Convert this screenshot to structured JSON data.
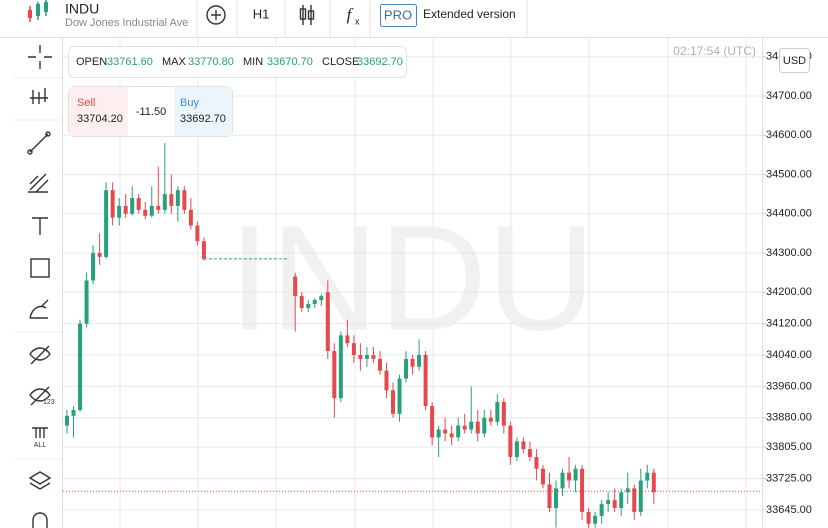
{
  "header": {
    "symbol": "INDU",
    "name": "Dow Jones Industrial Ave",
    "timeframe": "H1",
    "pro": "PRO",
    "extended": "Extended version"
  },
  "info": {
    "open_label": "OPEN",
    "open": "33761.60",
    "max_label": "MAX",
    "max": "33770.80",
    "min_label": "MIN",
    "min": "33670.70",
    "close_label": "CLOSE",
    "close": "33692.70",
    "time": "02:17:54 (UTC)",
    "currency": "USD"
  },
  "trade": {
    "sell_label": "Sell",
    "sell": "33704.20",
    "spread": "-11.50",
    "buy_label": "Buy",
    "buy": "33692.70"
  },
  "toolbar": {
    "badge_123": "123",
    "badge_all": "ALL"
  },
  "chart_data": {
    "type": "candlestick",
    "up_color": "#26a17b",
    "down_color": "#e5484d",
    "current_price": 33692.7,
    "grid": true,
    "ylim": [
      33599,
      34848
    ],
    "yticks": [
      {
        "value": 34800,
        "label": "34800.00"
      },
      {
        "value": 34700,
        "label": "34700.00"
      },
      {
        "value": 34600,
        "label": "34600.00"
      },
      {
        "value": 34500,
        "label": "34500.00"
      },
      {
        "value": 34400,
        "label": "34400.00"
      },
      {
        "value": 34300,
        "label": "34300.00"
      },
      {
        "value": 34200,
        "label": "34200.00"
      },
      {
        "value": 34120,
        "label": "34120.00"
      },
      {
        "value": 34040,
        "label": "34040.00"
      },
      {
        "value": 33960,
        "label": "33960.00"
      },
      {
        "value": 33880,
        "label": "33880.00"
      },
      {
        "value": 33805,
        "label": "33805.00"
      },
      {
        "value": 33725,
        "label": "33725.00"
      },
      {
        "value": 33645,
        "label": "33645.00"
      }
    ],
    "open": [
      33860,
      33885,
      33900,
      34120,
      34230,
      34300,
      34290,
      34460,
      34390,
      34420,
      34400,
      34440,
      34410,
      34395,
      34420,
      34410,
      34450,
      34420,
      34460,
      34410,
      34370,
      34330,
      null,
      null,
      null,
      null,
      null,
      null,
      null,
      null,
      null,
      null,
      null,
      null,
      null,
      34240,
      34190,
      34160,
      34170,
      34180,
      34200,
      34050,
      33930,
      34090,
      34070,
      34040,
      34030,
      34040,
      34030,
      34000,
      33950,
      33890,
      33980,
      34030,
      34010,
      34040,
      33910,
      33830,
      33850,
      33840,
      33830,
      33860,
      33850,
      33870,
      33840,
      33880,
      33870,
      33920,
      33860,
      33780,
      33820,
      33800,
      33780,
      33750,
      33710,
      33650,
      33700,
      33740,
      33720,
      33750,
      33640,
      33610,
      33630,
      33660,
      33670,
      33650,
      33690,
      33700,
      33640,
      33720,
      33740
    ],
    "high": [
      33900,
      33910,
      34130,
      34250,
      34320,
      34350,
      34480,
      34480,
      34440,
      34450,
      34470,
      34450,
      34430,
      34470,
      34520,
      34580,
      34500,
      34470,
      34470,
      34440,
      34380,
      34340,
      null,
      null,
      null,
      null,
      null,
      null,
      null,
      null,
      null,
      null,
      null,
      null,
      null,
      34250,
      34200,
      34180,
      34185,
      34195,
      34230,
      34070,
      34100,
      34130,
      34090,
      34070,
      34060,
      34060,
      34050,
      34020,
      33970,
      33990,
      34050,
      34040,
      34080,
      34050,
      33920,
      33860,
      33880,
      33860,
      33880,
      33890,
      33960,
      33900,
      33900,
      33900,
      33940,
      33930,
      33870,
      33830,
      33830,
      33820,
      33800,
      33760,
      33740,
      33720,
      33750,
      33780,
      33760,
      33760,
      33650,
      33640,
      33670,
      33690,
      33700,
      33700,
      33740,
      33710,
      33750,
      33760,
      33750
    ],
    "low": [
      33840,
      33830,
      33895,
      34110,
      34220,
      34270,
      34285,
      34370,
      34370,
      34390,
      34395,
      34400,
      34385,
      34390,
      34400,
      34400,
      34400,
      34380,
      34400,
      34360,
      34320,
      34280,
      null,
      null,
      null,
      null,
      null,
      null,
      null,
      null,
      null,
      null,
      null,
      null,
      null,
      34100,
      34150,
      34150,
      34160,
      34165,
      34030,
      33880,
      33920,
      34060,
      34020,
      34000,
      34010,
      34020,
      33990,
      33930,
      33880,
      33870,
      33970,
      33990,
      34000,
      33900,
      33810,
      33780,
      33820,
      33810,
      33820,
      33840,
      33840,
      33820,
      33830,
      33860,
      33860,
      33840,
      33760,
      33770,
      33790,
      33770,
      33720,
      33700,
      33640,
      33600,
      33680,
      33700,
      33690,
      33620,
      33600,
      33600,
      33610,
      33640,
      33640,
      33630,
      33660,
      33620,
      33630,
      33700,
      33660
    ],
    "close": [
      33885,
      33900,
      34120,
      34230,
      34300,
      34290,
      34460,
      34390,
      34420,
      34400,
      34440,
      34410,
      34395,
      34420,
      34410,
      34450,
      34420,
      34460,
      34410,
      34370,
      34330,
      34285,
      null,
      null,
      null,
      null,
      null,
      null,
      null,
      null,
      null,
      null,
      null,
      null,
      null,
      34190,
      34160,
      34170,
      34180,
      34190,
      34050,
      33930,
      34090,
      34070,
      34040,
      34030,
      34040,
      34030,
      34000,
      33950,
      33890,
      33980,
      34030,
      34010,
      34040,
      33910,
      33830,
      33850,
      33840,
      33830,
      33860,
      33850,
      33870,
      33840,
      33880,
      33870,
      33920,
      33860,
      33780,
      33820,
      33800,
      33780,
      33750,
      33710,
      33650,
      33700,
      33740,
      33720,
      33750,
      33640,
      33610,
      33630,
      33660,
      33670,
      33650,
      33690,
      33700,
      33640,
      33720,
      33740,
      33690
    ]
  }
}
